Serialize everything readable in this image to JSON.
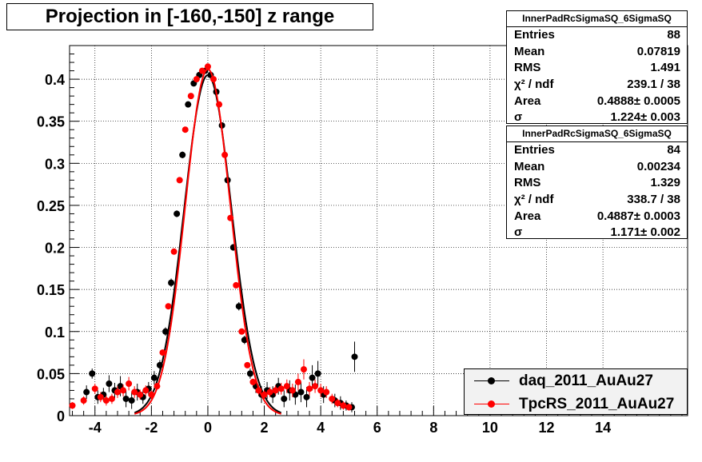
{
  "title": "Projection in [-160,-150] z range",
  "stats": [
    {
      "header": "InnerPadRcSigmaSQ_6SigmaSQ",
      "rows": [
        {
          "label": "Entries",
          "value": "88"
        },
        {
          "label": "Mean",
          "value": "0.07819"
        },
        {
          "label": "RMS",
          "value": "1.491"
        },
        {
          "label": "χ² / ndf",
          "value": "239.1 / 38"
        },
        {
          "label": "Area",
          "value": "0.4888± 0.0005"
        },
        {
          "label": "σ",
          "value": "1.224± 0.003"
        }
      ]
    },
    {
      "header": "InnerPadRcSigmaSQ_6SigmaSQ",
      "rows": [
        {
          "label": "Entries",
          "value": "84"
        },
        {
          "label": "Mean",
          "value": "0.00234"
        },
        {
          "label": "RMS",
          "value": "1.329"
        },
        {
          "label": "χ² / ndf",
          "value": "338.7 / 38"
        },
        {
          "label": "Area",
          "value": "0.4887± 0.0003"
        },
        {
          "label": "σ",
          "value": "1.171± 0.002"
        }
      ]
    }
  ],
  "legend": [
    {
      "label": "daq_2011_AuAu27",
      "color": "#000000"
    },
    {
      "label": "TpcRS_2011_AuAu27",
      "color": "#ff0000"
    }
  ],
  "chart_data": {
    "type": "scatter",
    "title": "Projection in [-160,-150] z range",
    "xlim": [
      -4.9,
      17
    ],
    "ylim": [
      0,
      0.44
    ],
    "xticks": [
      -4,
      -2,
      0,
      2,
      4,
      6,
      8,
      10,
      12,
      14
    ],
    "yticks": [
      0,
      0.05,
      0.1,
      0.15,
      0.2,
      0.25,
      0.3,
      0.35,
      0.4
    ],
    "ytick_labels": [
      "0",
      "0.05",
      "0.1",
      "0.15",
      "0.2",
      "0.25",
      "0.3",
      "0.35",
      "0.4"
    ],
    "grid": true,
    "legend_position": "bottom-right",
    "series": [
      {
        "name": "daq_2011_AuAu27",
        "color": "#000000",
        "x": [
          -4.3,
          -4.1,
          -3.9,
          -3.7,
          -3.5,
          -3.3,
          -3.1,
          -2.9,
          -2.7,
          -2.5,
          -2.3,
          -2.1,
          -1.9,
          -1.7,
          -1.5,
          -1.3,
          -1.1,
          -0.9,
          -0.7,
          -0.5,
          -0.3,
          -0.1,
          0.1,
          0.3,
          0.5,
          0.7,
          0.9,
          1.1,
          1.3,
          1.5,
          1.7,
          1.9,
          2.1,
          2.3,
          2.5,
          2.7,
          2.9,
          3.1,
          3.3,
          3.5,
          3.7,
          3.9,
          4.1,
          4.5,
          4.7,
          4.9,
          5.1,
          5.2
        ],
        "y": [
          0.028,
          0.05,
          0.022,
          0.025,
          0.038,
          0.03,
          0.035,
          0.02,
          0.018,
          0.028,
          0.022,
          0.032,
          0.045,
          0.06,
          0.1,
          0.158,
          0.24,
          0.31,
          0.37,
          0.395,
          0.405,
          0.41,
          0.405,
          0.385,
          0.345,
          0.28,
          0.2,
          0.13,
          0.09,
          0.05,
          0.035,
          0.025,
          0.03,
          0.025,
          0.035,
          0.02,
          0.03,
          0.025,
          0.028,
          0.022,
          0.045,
          0.05,
          0.025,
          0.018,
          0.015,
          0.012,
          0.01,
          0.07
        ],
        "err": [
          0.008,
          0.006,
          0.008,
          0.008,
          0.01,
          0.009,
          0.012,
          0.01,
          0.01,
          0.01,
          0.008,
          0.008,
          0.008,
          0.006,
          0.005,
          0.005,
          0.004,
          0.004,
          0.003,
          0.003,
          0.003,
          0.003,
          0.003,
          0.003,
          0.003,
          0.003,
          0.004,
          0.005,
          0.005,
          0.006,
          0.008,
          0.01,
          0.01,
          0.01,
          0.01,
          0.01,
          0.012,
          0.012,
          0.012,
          0.012,
          0.015,
          0.015,
          0.01,
          0.008,
          0.008,
          0.006,
          0.006,
          0.018
        ]
      },
      {
        "name": "TpcRS_2011_AuAu27",
        "color": "#ff0000",
        "x": [
          -4.8,
          -4.4,
          -4.0,
          -3.8,
          -3.6,
          -3.4,
          -3.2,
          -3.0,
          -2.8,
          -2.6,
          -2.4,
          -2.2,
          -2.0,
          -1.8,
          -1.6,
          -1.4,
          -1.2,
          -1.0,
          -0.8,
          -0.6,
          -0.4,
          -0.2,
          0.0,
          0.2,
          0.4,
          0.6,
          0.8,
          1.0,
          1.2,
          1.4,
          1.6,
          1.8,
          2.0,
          2.2,
          2.4,
          2.6,
          2.8,
          3.0,
          3.2,
          3.4,
          3.6,
          3.8,
          4.0,
          4.2,
          4.4,
          4.6,
          4.8,
          5.0
        ],
        "y": [
          0.012,
          0.018,
          0.032,
          0.022,
          0.018,
          0.02,
          0.028,
          0.03,
          0.038,
          0.028,
          0.025,
          0.03,
          0.025,
          0.035,
          0.075,
          0.13,
          0.195,
          0.28,
          0.34,
          0.38,
          0.4,
          0.41,
          0.415,
          0.4,
          0.37,
          0.31,
          0.235,
          0.155,
          0.1,
          0.06,
          0.04,
          0.03,
          0.025,
          0.028,
          0.03,
          0.032,
          0.035,
          0.03,
          0.04,
          0.055,
          0.032,
          0.035,
          0.03,
          0.028,
          0.02,
          0.015,
          0.012,
          0.01
        ],
        "err": [
          0.004,
          0.005,
          0.006,
          0.006,
          0.006,
          0.006,
          0.007,
          0.007,
          0.008,
          0.007,
          0.006,
          0.006,
          0.005,
          0.004,
          0.003,
          0.003,
          0.002,
          0.002,
          0.002,
          0.002,
          0.002,
          0.002,
          0.002,
          0.002,
          0.002,
          0.002,
          0.002,
          0.002,
          0.003,
          0.003,
          0.004,
          0.005,
          0.005,
          0.006,
          0.006,
          0.007,
          0.008,
          0.008,
          0.01,
          0.012,
          0.008,
          0.008,
          0.008,
          0.007,
          0.006,
          0.005,
          0.005,
          0.004
        ]
      }
    ]
  }
}
